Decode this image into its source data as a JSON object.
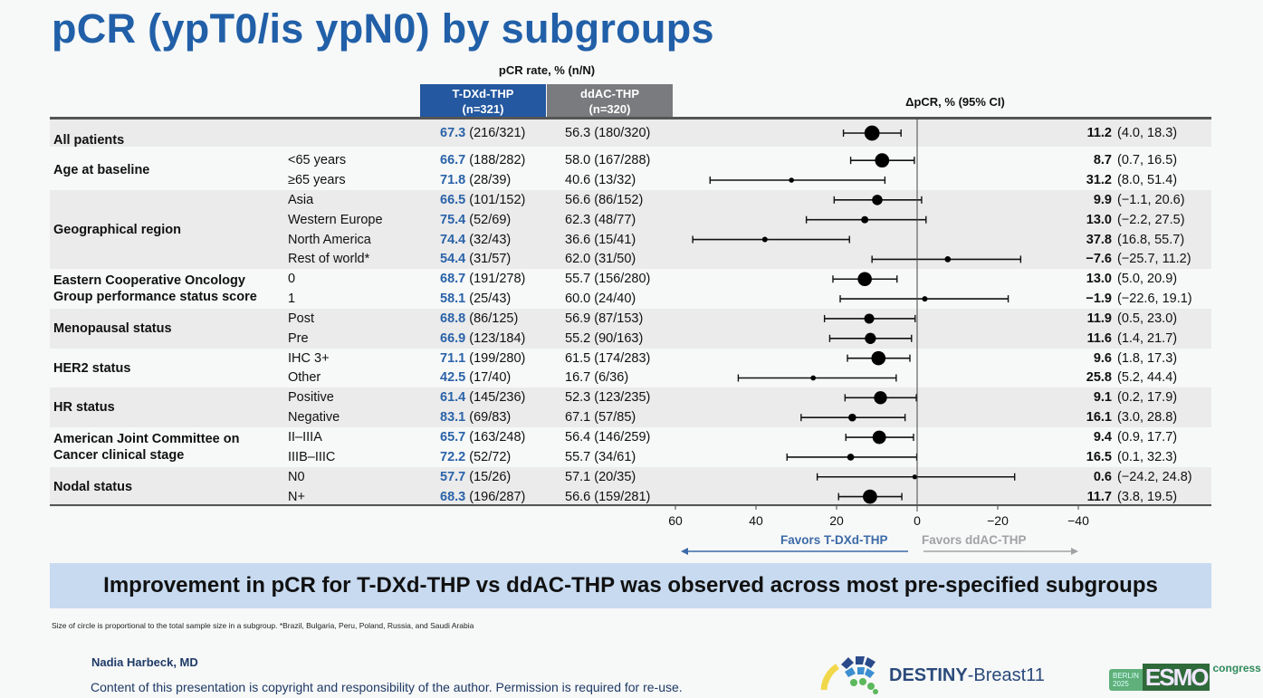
{
  "title": "pCR (ypT0/is ypN0) by subgroups",
  "chart_data": {
    "type": "forest",
    "header_rate": "pCR rate, % (n/N)",
    "arms": [
      {
        "name": "T-DXd-THP",
        "n": "(n=321)",
        "color": "#2458a0"
      },
      {
        "name": "ddAC-THP",
        "n": "(n=320)",
        "color": "#7a7b7e"
      }
    ],
    "delta_header": "ΔpCR, % (95% CI)",
    "xlim": [
      60,
      -40
    ],
    "xticks": [
      "60",
      "40",
      "20",
      "0",
      "−20",
      "−40"
    ],
    "xtick_values": [
      60,
      40,
      20,
      0,
      -20,
      -40
    ],
    "favors_left": "Favors T-DXd-THP",
    "favors_right": "Favors ddAC-THP",
    "groups": [
      {
        "label": "All patients",
        "rows": [
          {
            "sub": "",
            "p1": "67.3",
            "n1": "(216/321)",
            "p2": "56.3",
            "n2": "(180/320)",
            "d": 11.2,
            "lo": 4.0,
            "hi": 18.3,
            "ds": "11.2",
            "cis": "(4.0, 18.3)",
            "n": 641
          }
        ]
      },
      {
        "label": "Age at baseline",
        "rows": [
          {
            "sub": "<65 years",
            "p1": "66.7",
            "n1": "(188/282)",
            "p2": "58.0",
            "n2": "(167/288)",
            "d": 8.7,
            "lo": 0.7,
            "hi": 16.5,
            "ds": "8.7",
            "cis": "(0.7, 16.5)",
            "n": 570
          },
          {
            "sub": "≥65 years",
            "p1": "71.8",
            "n1": "(28/39)",
            "p2": "40.6",
            "n2": "(13/32)",
            "d": 31.2,
            "lo": 8.0,
            "hi": 51.4,
            "ds": "31.2",
            "cis": "(8.0, 51.4)",
            "n": 71
          }
        ]
      },
      {
        "label": "Geographical region",
        "rows": [
          {
            "sub": "Asia",
            "p1": "66.5",
            "n1": "(101/152)",
            "p2": "56.6",
            "n2": "(86/152)",
            "d": 9.9,
            "lo": -1.1,
            "hi": 20.6,
            "ds": "9.9",
            "cis": "(−1.1, 20.6)",
            "n": 304
          },
          {
            "sub": "Western Europe",
            "p1": "75.4",
            "n1": "(52/69)",
            "p2": "62.3",
            "n2": "(48/77)",
            "d": 13.0,
            "lo": -2.2,
            "hi": 27.5,
            "ds": "13.0",
            "cis": "(−2.2, 27.5)",
            "n": 146
          },
          {
            "sub": "North America",
            "p1": "74.4",
            "n1": "(32/43)",
            "p2": "36.6",
            "n2": "(15/41)",
            "d": 37.8,
            "lo": 16.8,
            "hi": 55.7,
            "ds": "37.8",
            "cis": "(16.8, 55.7)",
            "n": 84
          },
          {
            "sub": "Rest of world*",
            "p1": "54.4",
            "n1": "(31/57)",
            "p2": "62.0",
            "n2": "(31/50)",
            "d": -7.6,
            "lo": -25.7,
            "hi": 11.2,
            "ds": "−7.6",
            "cis": "(−25.7, 11.2)",
            "n": 107
          }
        ]
      },
      {
        "label": "Eastern Cooperative Oncology Group performance status score",
        "rows": [
          {
            "sub": "0",
            "p1": "68.7",
            "n1": "(191/278)",
            "p2": "55.7",
            "n2": "(156/280)",
            "d": 13.0,
            "lo": 5.0,
            "hi": 20.9,
            "ds": "13.0",
            "cis": "(5.0, 20.9)",
            "n": 558
          },
          {
            "sub": "1",
            "p1": "58.1",
            "n1": "(25/43)",
            "p2": "60.0",
            "n2": "(24/40)",
            "d": -1.9,
            "lo": -22.6,
            "hi": 19.1,
            "ds": "−1.9",
            "cis": "(−22.6, 19.1)",
            "n": 83
          }
        ]
      },
      {
        "label": "Menopausal status",
        "rows": [
          {
            "sub": "Post",
            "p1": "68.8",
            "n1": "(86/125)",
            "p2": "56.9",
            "n2": "(87/153)",
            "d": 11.9,
            "lo": 0.5,
            "hi": 23.0,
            "ds": "11.9",
            "cis": "(0.5, 23.0)",
            "n": 278
          },
          {
            "sub": "Pre",
            "p1": "66.9",
            "n1": "(123/184)",
            "p2": "55.2",
            "n2": "(90/163)",
            "d": 11.6,
            "lo": 1.4,
            "hi": 21.7,
            "ds": "11.6",
            "cis": "(1.4, 21.7)",
            "n": 347
          }
        ]
      },
      {
        "label": "HER2 status",
        "rows": [
          {
            "sub": "IHC 3+",
            "p1": "71.1",
            "n1": "(199/280)",
            "p2": "61.5",
            "n2": "(174/283)",
            "d": 9.6,
            "lo": 1.8,
            "hi": 17.3,
            "ds": "9.6",
            "cis": "(1.8, 17.3)",
            "n": 563
          },
          {
            "sub": "Other",
            "p1": "42.5",
            "n1": "(17/40)",
            "p2": "16.7",
            "n2": "(6/36)",
            "d": 25.8,
            "lo": 5.2,
            "hi": 44.4,
            "ds": "25.8",
            "cis": "(5.2, 44.4)",
            "n": 76
          }
        ]
      },
      {
        "label": "HR status",
        "rows": [
          {
            "sub": "Positive",
            "p1": "61.4",
            "n1": "(145/236)",
            "p2": "52.3",
            "n2": "(123/235)",
            "d": 9.1,
            "lo": 0.2,
            "hi": 17.9,
            "ds": "9.1",
            "cis": "(0.2, 17.9)",
            "n": 471
          },
          {
            "sub": "Negative",
            "p1": "83.1",
            "n1": "(69/83)",
            "p2": "67.1",
            "n2": "(57/85)",
            "d": 16.1,
            "lo": 3.0,
            "hi": 28.8,
            "ds": "16.1",
            "cis": "(3.0, 28.8)",
            "n": 168
          }
        ]
      },
      {
        "label": "American Joint Committee on Cancer clinical stage",
        "rows": [
          {
            "sub": "II–IIIA",
            "p1": "65.7",
            "n1": "(163/248)",
            "p2": "56.4",
            "n2": "(146/259)",
            "d": 9.4,
            "lo": 0.9,
            "hi": 17.7,
            "ds": "9.4",
            "cis": "(0.9, 17.7)",
            "n": 507
          },
          {
            "sub": "IIIB–IIIC",
            "p1": "72.2",
            "n1": "(52/72)",
            "p2": "55.7",
            "n2": "(34/61)",
            "d": 16.5,
            "lo": 0.1,
            "hi": 32.3,
            "ds": "16.5",
            "cis": "(0.1, 32.3)",
            "n": 133
          }
        ]
      },
      {
        "label": "Nodal status",
        "rows": [
          {
            "sub": "N0",
            "p1": "57.7",
            "n1": "(15/26)",
            "p2": "57.1",
            "n2": "(20/35)",
            "d": 0.6,
            "lo": -24.2,
            "hi": 24.8,
            "ds": "0.6",
            "cis": "(−24.2, 24.8)",
            "n": 61
          },
          {
            "sub": "N+",
            "p1": "68.3",
            "n1": "(196/287)",
            "p2": "56.6",
            "n2": "(159/281)",
            "d": 11.7,
            "lo": 3.8,
            "hi": 19.5,
            "ds": "11.7",
            "cis": "(3.8, 19.5)",
            "n": 568
          }
        ]
      }
    ]
  },
  "banner": "Improvement in pCR for T-DXd-THP vs ddAC-THP was observed across most pre-specified subgroups",
  "footnote": "Size of circle is proportional to the total sample size in a subgroup. *Brazil, Bulgaria, Peru, Poland, Russia, and Saudi Arabia",
  "author": "Nadia Harbeck, MD",
  "copyright": "Content of this presentation is copyright and responsibility of the author. Permission is required for re-use.",
  "logos": {
    "destiny_bold": "DESTINY",
    "destiny_rest": "-Breast11",
    "esmo_city": "BERLIN",
    "esmo_year": "2025",
    "esmo": "ESMO",
    "esmo_congress": "congress"
  }
}
